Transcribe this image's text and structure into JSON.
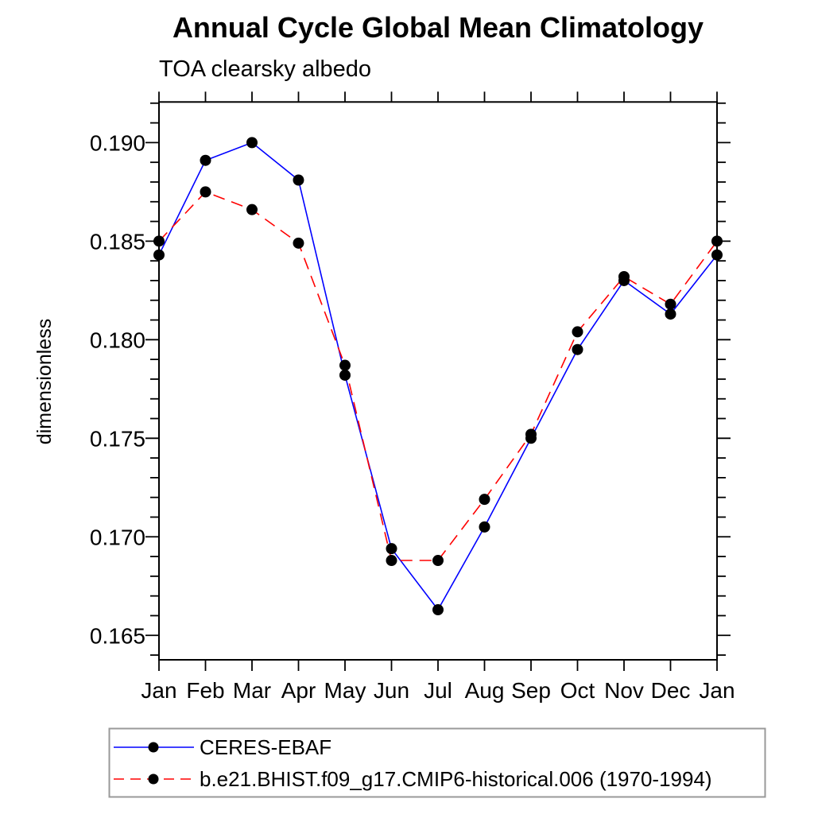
{
  "chart": {
    "title": "Annual Cycle Global Mean Climatology",
    "subtitle": "TOA clearsky albedo",
    "ylabel": "dimensionless"
  },
  "legend": {
    "entries": [
      {
        "label": "CERES-EBAF"
      },
      {
        "label": "b.e21.BHIST.f09_g17.CMIP6-historical.006 (1970-1994)"
      }
    ]
  },
  "chart_data": {
    "type": "line",
    "title": "Annual Cycle Global Mean Climatology",
    "subtitle": "TOA clearsky albedo",
    "xlabel": "",
    "ylabel": "dimensionless",
    "x_categories": [
      "Jan",
      "Feb",
      "Mar",
      "Apr",
      "May",
      "Jun",
      "Jul",
      "Aug",
      "Sep",
      "Oct",
      "Nov",
      "Dec",
      "Jan"
    ],
    "series": [
      {
        "name": "CERES-EBAF",
        "color": "#0000ff",
        "line_style": "solid",
        "marker": "black-circle",
        "values": [
          0.1843,
          0.1891,
          0.19,
          0.1881,
          0.1782,
          0.1694,
          0.1663,
          0.1705,
          0.175,
          0.1795,
          0.183,
          0.1813,
          0.1843
        ]
      },
      {
        "name": "b.e21.BHIST.f09_g17.CMIP6-historical.006 (1970-1994)",
        "color": "#ff0000",
        "line_style": "dashed",
        "marker": "black-circle",
        "values": [
          0.185,
          0.1875,
          0.1866,
          0.1849,
          0.1787,
          0.1688,
          0.1688,
          0.1719,
          0.1752,
          0.1804,
          0.1832,
          0.1818,
          0.185
        ]
      }
    ],
    "ylim": [
      0.16376,
      0.19206
    ],
    "y_major_ticks": [
      0.165,
      0.17,
      0.175,
      0.18,
      0.185,
      0.19
    ],
    "y_minor_step": 0.001,
    "y_tick_decimals": 3,
    "grid": false,
    "legend_position": "bottom-left",
    "marker_color": "#000000",
    "frame_color": "#000000",
    "legend_border_color": "#999999"
  }
}
